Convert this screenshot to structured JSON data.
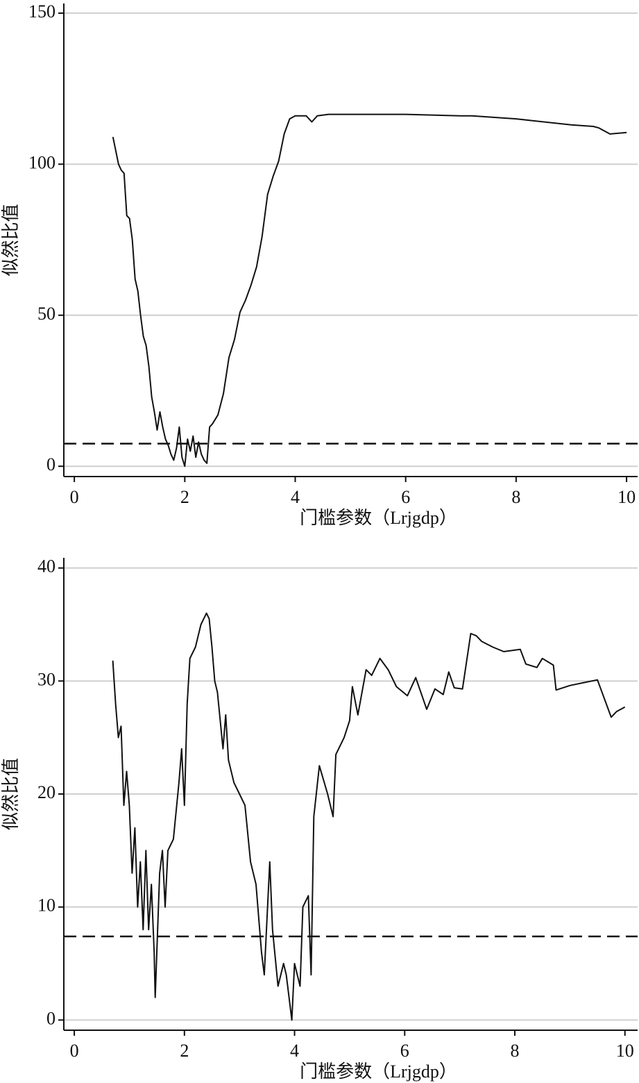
{
  "chart_data": [
    {
      "type": "line",
      "ylabel": "似然比值",
      "xlabel": "门槛参数（Lrjgdp）",
      "xlim": [
        -0.19,
        10.2
      ],
      "xticks": [
        0,
        2,
        4,
        6,
        8,
        10
      ],
      "ylim": [
        -3.4,
        153.2
      ],
      "yticks": [
        0,
        50,
        100,
        150
      ],
      "grid": true,
      "color": "#111111",
      "threshold": 7.5,
      "x": [
        0.7,
        0.8,
        0.85,
        0.9,
        0.95,
        1.0,
        1.05,
        1.1,
        1.15,
        1.2,
        1.25,
        1.3,
        1.35,
        1.4,
        1.45,
        1.5,
        1.55,
        1.6,
        1.65,
        1.7,
        1.75,
        1.8,
        1.85,
        1.9,
        1.95,
        2.0,
        2.05,
        2.1,
        2.15,
        2.2,
        2.25,
        2.3,
        2.35,
        2.4,
        2.45,
        2.5,
        2.6,
        2.7,
        2.8,
        2.9,
        3.0,
        3.1,
        3.2,
        3.3,
        3.4,
        3.5,
        3.6,
        3.7,
        3.8,
        3.9,
        4.0,
        4.2,
        4.3,
        4.4,
        4.6,
        5.0,
        6.0,
        7.0,
        7.2,
        8.0,
        9.0,
        9.4,
        9.5,
        9.7,
        10.0
      ],
      "values": [
        109,
        100,
        98,
        97,
        83,
        82,
        75,
        62,
        58,
        50,
        43,
        40,
        33,
        23,
        18,
        12,
        18,
        13,
        9,
        7,
        4,
        2,
        6,
        13,
        3,
        0,
        9,
        5,
        10,
        3,
        8,
        4,
        2,
        1,
        13,
        14,
        17,
        24,
        36,
        42,
        51,
        55,
        60,
        66,
        76,
        90,
        96,
        101,
        110,
        115,
        116,
        116,
        114,
        116,
        116.5,
        116.5,
        116.5,
        116,
        116,
        115,
        113,
        112.5,
        112,
        110,
        110.5
      ]
    },
    {
      "type": "line",
      "ylabel": "似然比值",
      "xlabel": "门槛参数（Lrjgdp）",
      "xlim": [
        -0.19,
        10.23
      ],
      "xticks": [
        0,
        2,
        4,
        6,
        8,
        10
      ],
      "ylim": [
        -0.9,
        40.9
      ],
      "yticks": [
        0,
        10,
        20,
        30,
        40
      ],
      "grid": true,
      "color": "#111111",
      "threshold": 7.4,
      "x": [
        0.7,
        0.75,
        0.8,
        0.85,
        0.9,
        0.95,
        1.0,
        1.05,
        1.1,
        1.15,
        1.2,
        1.25,
        1.3,
        1.35,
        1.4,
        1.45,
        1.47,
        1.55,
        1.6,
        1.65,
        1.7,
        1.8,
        1.9,
        1.95,
        2.0,
        2.05,
        2.1,
        2.2,
        2.3,
        2.4,
        2.45,
        2.5,
        2.55,
        2.6,
        2.7,
        2.75,
        2.8,
        2.9,
        3.0,
        3.1,
        3.2,
        3.3,
        3.4,
        3.45,
        3.55,
        3.6,
        3.7,
        3.8,
        3.85,
        3.9,
        3.95,
        4.0,
        4.1,
        4.15,
        4.25,
        4.3,
        4.35,
        4.45,
        4.6,
        4.7,
        4.75,
        4.9,
        5.0,
        5.05,
        5.15,
        5.3,
        5.4,
        5.55,
        5.7,
        5.85,
        6.05,
        6.2,
        6.4,
        6.55,
        6.7,
        6.8,
        6.9,
        7.05,
        7.2,
        7.3,
        7.4,
        7.6,
        7.8,
        8.1,
        8.2,
        8.4,
        8.5,
        8.7,
        8.75,
        9.0,
        9.3,
        9.5,
        9.75,
        9.85,
        10.0
      ],
      "values": [
        31.8,
        28,
        25,
        26,
        19,
        22,
        19,
        13,
        17,
        10,
        14,
        8,
        15,
        8,
        12,
        6,
        2,
        13,
        15,
        10,
        15,
        16,
        21,
        24,
        19,
        28,
        32,
        33,
        35,
        36,
        35.5,
        33,
        30,
        29,
        24,
        27,
        23,
        21,
        20,
        19,
        14,
        12,
        6,
        4,
        14,
        8,
        3,
        5,
        4,
        2,
        0,
        5,
        3,
        10,
        11,
        4,
        18,
        22.5,
        20,
        18,
        23.5,
        25,
        26.5,
        29.5,
        27,
        31,
        30.5,
        32,
        31,
        29.5,
        28.7,
        30.3,
        27.5,
        29.3,
        28.8,
        30.8,
        29.4,
        29.3,
        34.2,
        34,
        33.5,
        33,
        32.6,
        32.8,
        31.5,
        31.2,
        32,
        31.4,
        29.2,
        29.6,
        29.9,
        30.1,
        26.8,
        27.3,
        27.7
      ]
    }
  ]
}
